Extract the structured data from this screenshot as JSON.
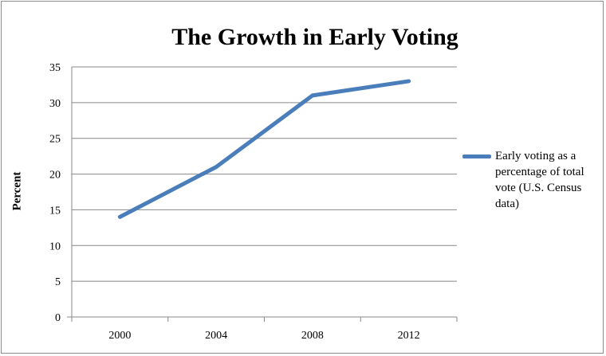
{
  "chart_data": {
    "type": "line",
    "title": "The Growth in Early Voting",
    "xlabel": "",
    "ylabel": "Percent",
    "categories": [
      "2000",
      "2004",
      "2008",
      "2012"
    ],
    "series": [
      {
        "name": "Early voting as a percentage of total vote (U.S. Census data)",
        "values": [
          14,
          21,
          31,
          33
        ],
        "color": "#4a7ebb"
      }
    ],
    "ylim": [
      0,
      35
    ],
    "yticks": [
      0,
      5,
      10,
      15,
      20,
      25,
      30,
      35
    ],
    "grid": true,
    "legend": "right"
  }
}
